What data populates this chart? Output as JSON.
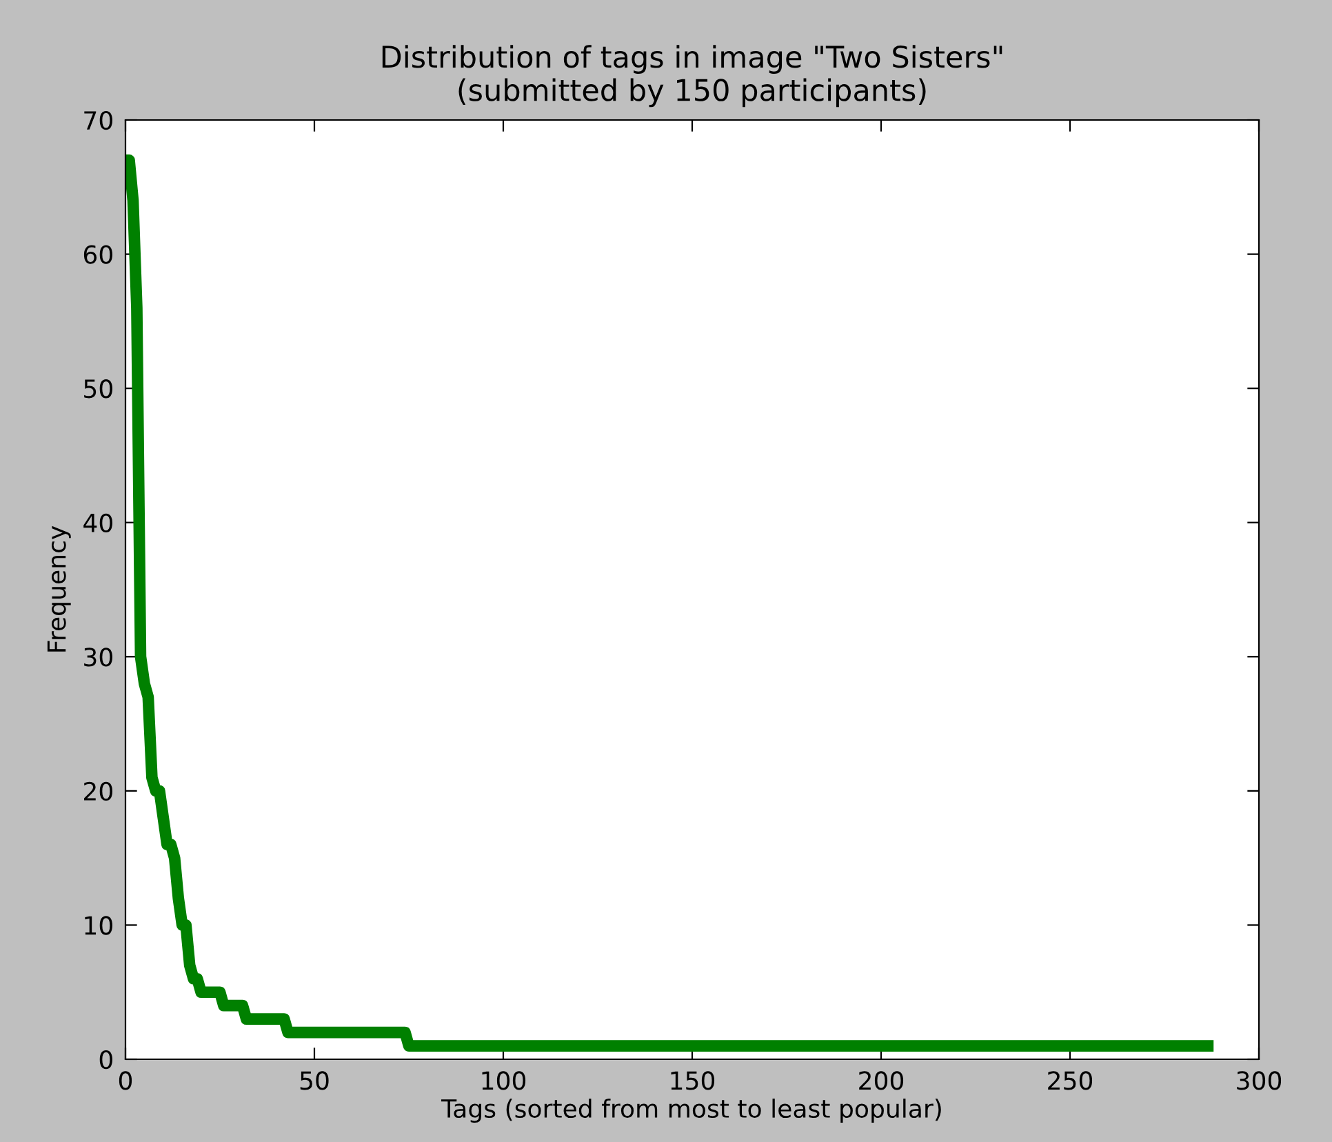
{
  "chart_data": {
    "type": "line",
    "title": "Distribution of tags in image \"Two Sisters\"\n(submitted by 150 participants)",
    "xlabel": "Tags (sorted from most to least popular)",
    "ylabel": "Frequency",
    "x": [
      0,
      1,
      2,
      3,
      4,
      5,
      6,
      7,
      8,
      9,
      10,
      11,
      12,
      13,
      14,
      15,
      16,
      17,
      18,
      19,
      20,
      25,
      26,
      31,
      32,
      42,
      43,
      74,
      75,
      288
    ],
    "series": [
      {
        "color": "#008000",
        "values": [
          67,
          67,
          64,
          56,
          30,
          28,
          27,
          21,
          20,
          20,
          18,
          16,
          16,
          15,
          12,
          10,
          10,
          7,
          6,
          6,
          5,
          5,
          4,
          4,
          3,
          3,
          2,
          2,
          1,
          1
        ]
      }
    ],
    "xlim": [
      0,
      300
    ],
    "xticks": [
      0,
      50,
      100,
      150,
      200,
      250,
      300
    ],
    "ylim": [
      0,
      70
    ],
    "yticks": [
      0,
      10,
      20,
      30,
      40,
      50,
      60,
      70
    ],
    "grid": false
  }
}
